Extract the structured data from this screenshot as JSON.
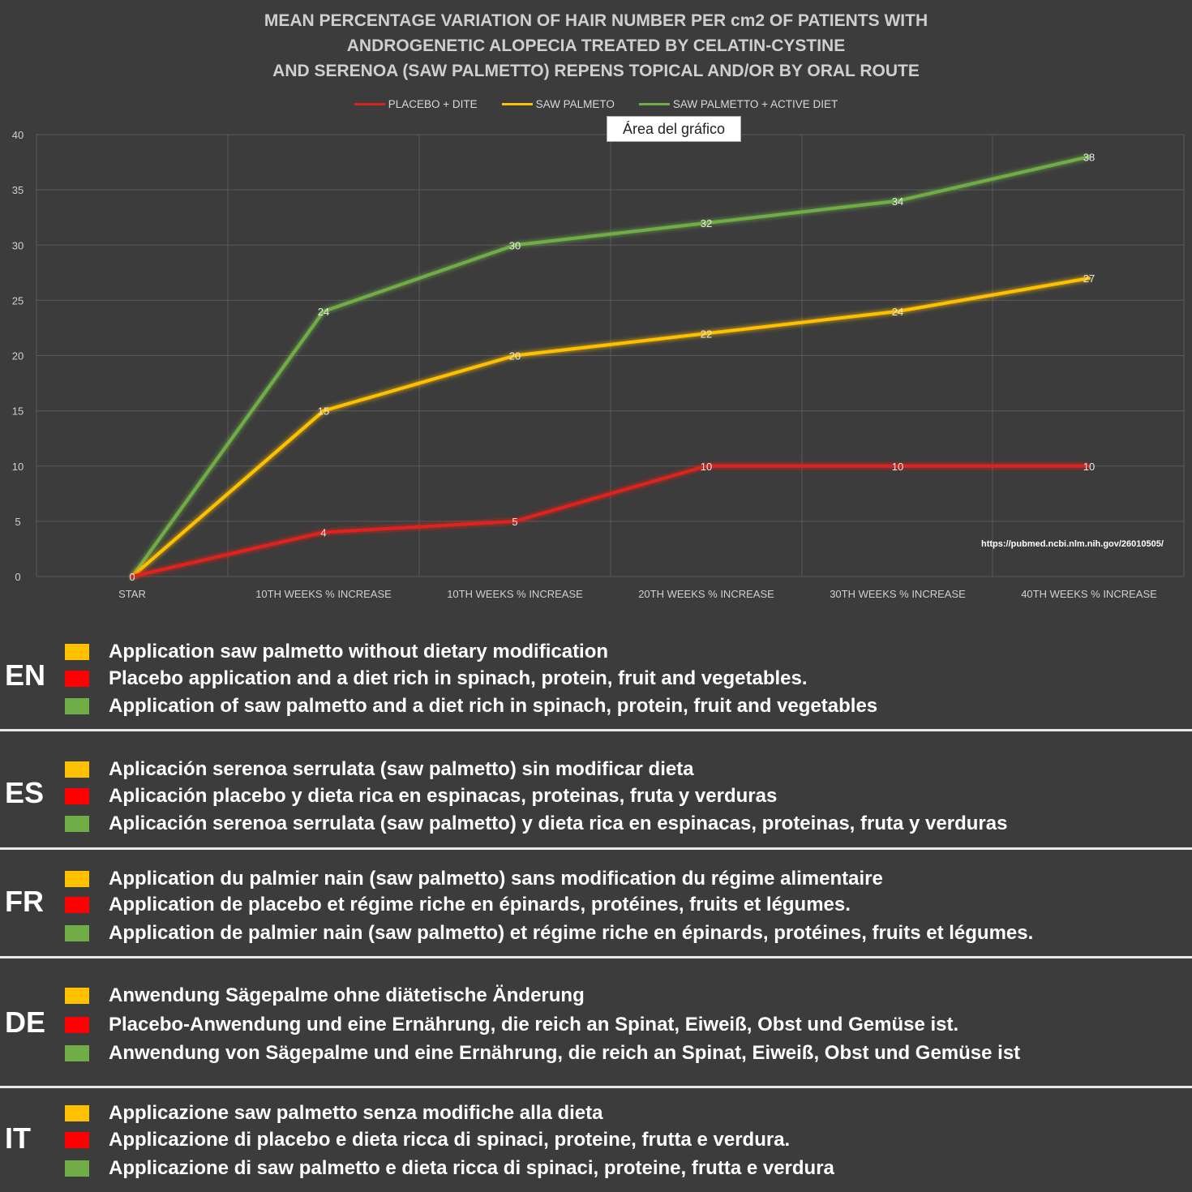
{
  "chart_data": {
    "type": "line",
    "title_lines": [
      "MEAN PERCENTAGE VARIATION OF HAIR NUMBER PER cm2 OF PATIENTS WITH",
      "ANDROGENETIC ALOPECIA TREATED BY CELATIN-CYSTINE",
      "AND SERENOA (SAW PALMETTO) REPENS TOPICAL AND/OR BY ORAL ROUTE"
    ],
    "categories": [
      "STAR",
      "10TH WEEKS % INCREASE",
      "10TH WEEKS % INCREASE",
      "20TH WEEKS % INCREASE",
      "30TH WEEKS % INCREASE",
      "40TH WEEKS % INCREASE"
    ],
    "ylim": [
      0,
      40
    ],
    "yticks": [
      0,
      5,
      10,
      15,
      20,
      25,
      30,
      35,
      40
    ],
    "grid": true,
    "legend_position": "top",
    "series": [
      {
        "name": "PLACEBO + DITE",
        "color": "#e0201c",
        "values": [
          0,
          4,
          5,
          10,
          10,
          10
        ],
        "labels": [
          "0",
          "4",
          "5",
          "10",
          "10",
          "10"
        ]
      },
      {
        "name": "SAW PALMETO",
        "color": "#ffc000",
        "values": [
          0,
          15,
          20,
          22,
          24,
          27
        ],
        "labels": [
          "",
          "15",
          "20",
          "22",
          "24",
          "27"
        ]
      },
      {
        "name": "SAW PALMETTO + ACTIVE DIET",
        "color": "#70ad47",
        "values": [
          0,
          24,
          30,
          32,
          34,
          38
        ],
        "labels": [
          "",
          "24",
          "30",
          "32",
          "34",
          "38"
        ]
      }
    ],
    "tooltip": "Área del gráfico",
    "source": "https://pubmed.ncbi.nlm.nih.gov/26010505/"
  },
  "languages": [
    {
      "code": "EN",
      "items": [
        {
          "color": "yellow",
          "text": "Application saw palmetto without dietary modification"
        },
        {
          "color": "red",
          "text": "Placebo application and a diet rich in spinach, protein, fruit and vegetables."
        },
        {
          "color": "green",
          "text": "Application of saw palmetto and a diet rich in spinach, protein, fruit and vegetables"
        }
      ]
    },
    {
      "code": "ES",
      "items": [
        {
          "color": "yellow",
          "text": "Aplicación serenoa serrulata (saw palmetto) sin modificar dieta"
        },
        {
          "color": "red",
          "text": "Aplicación placebo y dieta rica en espinacas, proteinas, fruta y verduras"
        },
        {
          "color": "green",
          "text": "Aplicación serenoa serrulata (saw palmetto) y dieta rica en espinacas, proteinas, fruta y verduras"
        }
      ]
    },
    {
      "code": "FR",
      "items": [
        {
          "color": "yellow",
          "text": "Application du palmier nain (saw palmetto) sans modification du régime alimentaire"
        },
        {
          "color": "red",
          "text": "Application de placebo et régime riche en épinards, protéines, fruits et légumes."
        },
        {
          "color": "green",
          "text": "Application de palmier nain (saw palmetto) et régime riche en épinards, protéines, fruits et légumes."
        }
      ]
    },
    {
      "code": "DE",
      "items": [
        {
          "color": "yellow",
          "text": "Anwendung Sägepalme ohne diätetische Änderung"
        },
        {
          "color": "red",
          "text": "Placebo-Anwendung und eine Ernährung, die reich an Spinat, Eiweiß, Obst und Gemüse ist."
        },
        {
          "color": "green",
          "text": "Anwendung von Sägepalme und eine Ernährung, die reich an Spinat, Eiweiß, Obst und Gemüse ist"
        }
      ]
    },
    {
      "code": "IT",
      "items": [
        {
          "color": "yellow",
          "text": "Applicazione saw palmetto senza modifiche alla dieta"
        },
        {
          "color": "red",
          "text": "Applicazione di placebo e dieta ricca di spinaci, proteine, frutta e verdura."
        },
        {
          "color": "green",
          "text": "Applicazione di saw palmetto e dieta ricca di spinaci, proteine, frutta e verdura"
        }
      ]
    }
  ]
}
